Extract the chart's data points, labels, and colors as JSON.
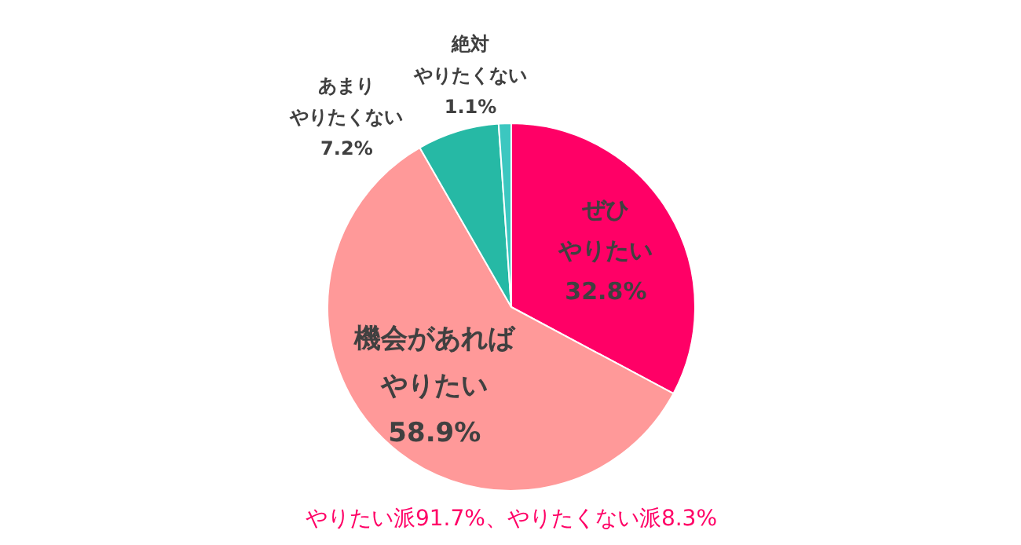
{
  "chart_data": {
    "type": "pie",
    "categories": [
      "ぜひやりたい",
      "機会があればやりたい",
      "あまりやりたくない",
      "絶対やりたくない"
    ],
    "values": [
      32.8,
      58.9,
      7.2,
      1.1
    ],
    "value_labels": [
      "32.8%",
      "58.9%",
      "7.2%",
      "1.1%"
    ],
    "colors": [
      "#ff0066",
      "#ff9999",
      "#26b9a5",
      "#3cc7c0"
    ],
    "annotations": [
      "やりたい派91.7%、やりたくない派8.3%"
    ]
  }
}
